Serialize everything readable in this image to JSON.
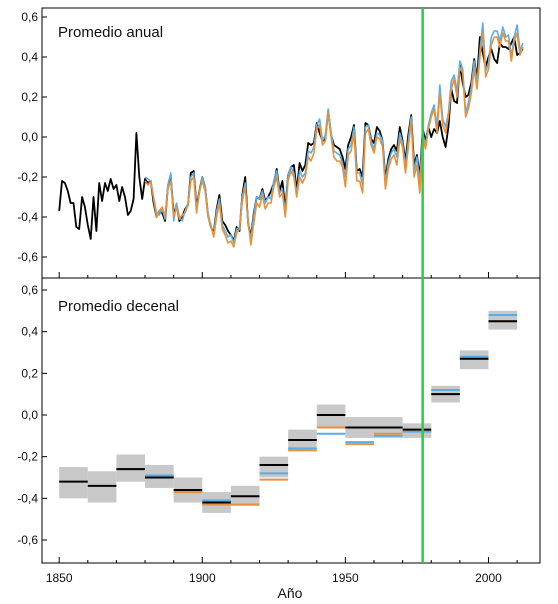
{
  "chart_data": [
    {
      "type": "line",
      "title": "Promedio anual",
      "xlabel": "",
      "ylabel": "",
      "xlim": [
        1844,
        2018
      ],
      "ylim": [
        -0.7,
        0.62
      ],
      "yticks": [
        0.6,
        0.4,
        0.2,
        0.0,
        -0.2,
        -0.4,
        -0.6
      ],
      "ytick_labels": [
        "0,6",
        "0,4",
        "0,2",
        "0,0",
        "-0,2",
        "-0,4",
        "-0,6"
      ],
      "grid": false,
      "legend": "none",
      "series": [
        {
          "color": "#000000",
          "x": [
            1850,
            1851,
            1852,
            1853,
            1854,
            1855,
            1856,
            1857,
            1858,
            1859,
            1860,
            1861,
            1862,
            1863,
            1864,
            1865,
            1866,
            1867,
            1868,
            1869,
            1870,
            1871,
            1872,
            1873,
            1874,
            1875,
            1876,
            1877,
            1878,
            1879,
            1880,
            1881,
            1882,
            1883,
            1884,
            1885,
            1886,
            1887,
            1888,
            1889,
            1890,
            1891,
            1892,
            1893,
            1894,
            1895,
            1896,
            1897,
            1898,
            1899,
            1900,
            1901,
            1902,
            1903,
            1904,
            1905,
            1906,
            1907,
            1908,
            1909,
            1910,
            1911,
            1912,
            1913,
            1914,
            1915,
            1916,
            1917,
            1918,
            1919,
            1920,
            1921,
            1922,
            1923,
            1924,
            1925,
            1926,
            1927,
            1928,
            1929,
            1930,
            1931,
            1932,
            1933,
            1934,
            1935,
            1936,
            1937,
            1938,
            1939,
            1940,
            1941,
            1942,
            1943,
            1944,
            1945,
            1946,
            1947,
            1948,
            1949,
            1950,
            1951,
            1952,
            1953,
            1954,
            1955,
            1956,
            1957,
            1958,
            1959,
            1960,
            1961,
            1962,
            1963,
            1964,
            1965,
            1966,
            1967,
            1968,
            1969,
            1970,
            1971,
            1972,
            1973,
            1974,
            1975,
            1976,
            1977,
            1978,
            1979,
            1980,
            1981,
            1982,
            1983,
            1984,
            1985,
            1986,
            1987,
            1988,
            1989,
            1990,
            1991,
            1992,
            1993,
            1994,
            1995,
            1996,
            1997,
            1998,
            1999,
            2000,
            2001,
            2002,
            2003,
            2004,
            2005,
            2006,
            2007,
            2008,
            2009,
            2010,
            2011,
            2012
          ],
          "y": [
            -0.37,
            -0.22,
            -0.23,
            -0.27,
            -0.33,
            -0.33,
            -0.45,
            -0.46,
            -0.3,
            -0.35,
            -0.44,
            -0.51,
            -0.3,
            -0.47,
            -0.23,
            -0.32,
            -0.23,
            -0.27,
            -0.21,
            -0.26,
            -0.24,
            -0.32,
            -0.25,
            -0.3,
            -0.39,
            -0.37,
            -0.31,
            0.02,
            -0.2,
            -0.31,
            -0.21,
            -0.23,
            -0.22,
            -0.33,
            -0.4,
            -0.37,
            -0.38,
            -0.42,
            -0.25,
            -0.2,
            -0.39,
            -0.34,
            -0.42,
            -0.4,
            -0.36,
            -0.34,
            -0.18,
            -0.17,
            -0.35,
            -0.27,
            -0.2,
            -0.25,
            -0.39,
            -0.45,
            -0.48,
            -0.36,
            -0.29,
            -0.42,
            -0.44,
            -0.47,
            -0.49,
            -0.52,
            -0.45,
            -0.47,
            -0.29,
            -0.2,
            -0.43,
            -0.5,
            -0.38,
            -0.3,
            -0.31,
            -0.26,
            -0.32,
            -0.3,
            -0.27,
            -0.23,
            -0.16,
            -0.27,
            -0.22,
            -0.36,
            -0.19,
            -0.15,
            -0.14,
            -0.27,
            -0.13,
            -0.17,
            -0.14,
            -0.03,
            -0.04,
            -0.03,
            0.07,
            0.02,
            -0.02,
            -0.01,
            0.13,
            0.01,
            -0.04,
            -0.05,
            -0.06,
            -0.1,
            -0.16,
            -0.04,
            0.0,
            0.06,
            -0.17,
            -0.16,
            -0.2,
            0.07,
            0.06,
            -0.01,
            -0.03,
            0.05,
            0.03,
            -0.02,
            -0.21,
            -0.11,
            -0.06,
            -0.04,
            -0.07,
            0.05,
            -0.02,
            -0.12,
            0.01,
            0.11,
            -0.14,
            -0.09,
            -0.2,
            0.04,
            -0.02,
            0.05,
            0.0,
            0.04,
            0.02,
            0.08,
            0.0,
            -0.05,
            0.05,
            0.24,
            0.18,
            0.17,
            0.36,
            0.27,
            0.2,
            0.21,
            0.27,
            0.39,
            0.29,
            0.5,
            0.42,
            0.35,
            0.4,
            0.44,
            0.39,
            0.37,
            0.47,
            0.45,
            0.45,
            0.44,
            0.47,
            0.5,
            0.41,
            0.42,
            0.44
          ]
        },
        {
          "color": "#5aaee8",
          "x": [
            1880,
            1881,
            1882,
            1883,
            1884,
            1885,
            1886,
            1887,
            1888,
            1889,
            1890,
            1891,
            1892,
            1893,
            1894,
            1895,
            1896,
            1897,
            1898,
            1899,
            1900,
            1901,
            1902,
            1903,
            1904,
            1905,
            1906,
            1907,
            1908,
            1909,
            1910,
            1911,
            1912,
            1913,
            1914,
            1915,
            1916,
            1917,
            1918,
            1919,
            1920,
            1921,
            1922,
            1923,
            1924,
            1925,
            1926,
            1927,
            1928,
            1929,
            1930,
            1931,
            1932,
            1933,
            1934,
            1935,
            1936,
            1937,
            1938,
            1939,
            1940,
            1941,
            1942,
            1943,
            1944,
            1945,
            1946,
            1947,
            1948,
            1949,
            1950,
            1951,
            1952,
            1953,
            1954,
            1955,
            1956,
            1957,
            1958,
            1959,
            1960,
            1961,
            1962,
            1963,
            1964,
            1965,
            1966,
            1967,
            1968,
            1969,
            1970,
            1971,
            1972,
            1973,
            1974,
            1975,
            1976,
            1977,
            1978,
            1979,
            1980,
            1981,
            1982,
            1983,
            1984,
            1985,
            1986,
            1987,
            1988,
            1989,
            1990,
            1991,
            1992,
            1993,
            1994,
            1995,
            1996,
            1997,
            1998,
            1999,
            2000,
            2001,
            2002,
            2003,
            2004,
            2005,
            2006,
            2007,
            2008,
            2009,
            2010,
            2011,
            2012
          ],
          "y": [
            -0.2,
            -0.21,
            -0.22,
            -0.3,
            -0.38,
            -0.39,
            -0.36,
            -0.41,
            -0.24,
            -0.18,
            -0.42,
            -0.33,
            -0.4,
            -0.42,
            -0.37,
            -0.33,
            -0.2,
            -0.18,
            -0.36,
            -0.28,
            -0.2,
            -0.25,
            -0.38,
            -0.45,
            -0.49,
            -0.37,
            -0.31,
            -0.44,
            -0.47,
            -0.5,
            -0.49,
            -0.53,
            -0.46,
            -0.45,
            -0.3,
            -0.23,
            -0.44,
            -0.51,
            -0.39,
            -0.3,
            -0.31,
            -0.27,
            -0.33,
            -0.3,
            -0.31,
            -0.22,
            -0.17,
            -0.28,
            -0.26,
            -0.38,
            -0.19,
            -0.15,
            -0.18,
            -0.29,
            -0.17,
            -0.2,
            -0.18,
            -0.07,
            -0.08,
            -0.05,
            0.06,
            0.09,
            -0.02,
            0.01,
            0.14,
            0.02,
            -0.07,
            -0.08,
            -0.09,
            -0.13,
            -0.2,
            -0.06,
            -0.04,
            0.05,
            -0.18,
            -0.18,
            -0.24,
            0.05,
            0.06,
            -0.02,
            -0.06,
            0.02,
            0.01,
            -0.02,
            -0.23,
            -0.13,
            -0.08,
            -0.06,
            -0.1,
            0.02,
            -0.03,
            -0.15,
            -0.02,
            0.1,
            -0.17,
            -0.1,
            -0.23,
            0.02,
            -0.04,
            0.06,
            0.12,
            0.16,
            0.05,
            0.26,
            0.09,
            0.05,
            0.12,
            0.28,
            0.31,
            0.23,
            0.38,
            0.34,
            0.12,
            0.17,
            0.25,
            0.38,
            0.27,
            0.43,
            0.57,
            0.33,
            0.37,
            0.5,
            0.53,
            0.53,
            0.48,
            0.55,
            0.5,
            0.51,
            0.4,
            0.5,
            0.56,
            0.43,
            0.47
          ]
        },
        {
          "color": "#e8913c",
          "x": [
            1880,
            1881,
            1882,
            1883,
            1884,
            1885,
            1886,
            1887,
            1888,
            1889,
            1890,
            1891,
            1892,
            1893,
            1894,
            1895,
            1896,
            1897,
            1898,
            1899,
            1900,
            1901,
            1902,
            1903,
            1904,
            1905,
            1906,
            1907,
            1908,
            1909,
            1910,
            1911,
            1912,
            1913,
            1914,
            1915,
            1916,
            1917,
            1918,
            1919,
            1920,
            1921,
            1922,
            1923,
            1924,
            1925,
            1926,
            1927,
            1928,
            1929,
            1930,
            1931,
            1932,
            1933,
            1934,
            1935,
            1936,
            1937,
            1938,
            1939,
            1940,
            1941,
            1942,
            1943,
            1944,
            1945,
            1946,
            1947,
            1948,
            1949,
            1950,
            1951,
            1952,
            1953,
            1954,
            1955,
            1956,
            1957,
            1958,
            1959,
            1960,
            1961,
            1962,
            1963,
            1964,
            1965,
            1966,
            1967,
            1968,
            1969,
            1970,
            1971,
            1972,
            1973,
            1974,
            1975,
            1976,
            1977,
            1978,
            1979,
            1980,
            1981,
            1982,
            1983,
            1984,
            1985,
            1986,
            1987,
            1988,
            1989,
            1990,
            1991,
            1992,
            1993,
            1994,
            1995,
            1996,
            1997,
            1998,
            1999,
            2000,
            2001,
            2002,
            2003,
            2004,
            2005,
            2006,
            2007,
            2008,
            2009,
            2010,
            2011,
            2012
          ],
          "y": [
            -0.22,
            -0.24,
            -0.22,
            -0.31,
            -0.4,
            -0.37,
            -0.35,
            -0.4,
            -0.26,
            -0.22,
            -0.4,
            -0.35,
            -0.41,
            -0.39,
            -0.38,
            -0.34,
            -0.22,
            -0.2,
            -0.38,
            -0.27,
            -0.22,
            -0.27,
            -0.4,
            -0.44,
            -0.5,
            -0.4,
            -0.33,
            -0.46,
            -0.49,
            -0.53,
            -0.52,
            -0.55,
            -0.48,
            -0.46,
            -0.32,
            -0.25,
            -0.42,
            -0.54,
            -0.43,
            -0.33,
            -0.35,
            -0.29,
            -0.36,
            -0.33,
            -0.33,
            -0.25,
            -0.2,
            -0.3,
            -0.28,
            -0.4,
            -0.22,
            -0.17,
            -0.2,
            -0.3,
            -0.2,
            -0.23,
            -0.2,
            -0.1,
            -0.12,
            -0.08,
            0.04,
            0.06,
            -0.04,
            -0.02,
            0.12,
            0.0,
            -0.1,
            -0.12,
            -0.12,
            -0.15,
            -0.25,
            -0.09,
            -0.07,
            0.02,
            -0.22,
            -0.22,
            -0.28,
            0.02,
            0.04,
            -0.04,
            -0.08,
            0.0,
            -0.01,
            -0.05,
            -0.26,
            -0.16,
            -0.11,
            -0.09,
            -0.14,
            -0.01,
            -0.05,
            -0.18,
            -0.05,
            0.08,
            -0.2,
            -0.14,
            -0.28,
            0.0,
            -0.06,
            0.04,
            0.1,
            0.14,
            0.02,
            0.22,
            0.06,
            0.02,
            0.1,
            0.24,
            0.29,
            0.2,
            0.35,
            0.32,
            0.1,
            0.14,
            0.22,
            0.34,
            0.24,
            0.4,
            0.52,
            0.3,
            0.34,
            0.46,
            0.5,
            0.5,
            0.45,
            0.52,
            0.48,
            0.48,
            0.38,
            0.48,
            0.52,
            0.41,
            0.45
          ]
        }
      ]
    },
    {
      "type": "bar",
      "title": "Promedio decenal",
      "xlabel": "Año",
      "ylabel": "",
      "xlim": [
        1844,
        2018
      ],
      "ylim": [
        -0.7,
        0.62
      ],
      "xticks": [
        1850,
        1900,
        1950,
        2000
      ],
      "xtick_labels": [
        "1850",
        "1900",
        "1950",
        "2000"
      ],
      "yticks": [
        0.6,
        0.4,
        0.2,
        0.0,
        -0.2,
        -0.4,
        -0.6
      ],
      "ytick_labels": [
        "0,6",
        "0,4",
        "0,2",
        "0,0",
        "-0,2",
        "-0,4",
        "-0,6"
      ],
      "grid": false,
      "legend": "none",
      "decades": [
        1850,
        1860,
        1870,
        1880,
        1890,
        1900,
        1910,
        1920,
        1930,
        1940,
        1950,
        1960,
        1970,
        1980,
        1990,
        2000
      ],
      "series": [
        {
          "color": "#000000",
          "values": [
            -0.32,
            -0.34,
            -0.26,
            -0.3,
            -0.36,
            -0.42,
            -0.39,
            -0.24,
            -0.12,
            0.0,
            -0.06,
            -0.06,
            -0.07,
            0.1,
            0.27,
            0.45
          ],
          "low": [
            -0.4,
            -0.42,
            -0.32,
            -0.35,
            -0.42,
            -0.47,
            -0.43,
            -0.3,
            -0.17,
            -0.06,
            -0.11,
            -0.11,
            -0.11,
            0.06,
            0.22,
            0.41
          ],
          "high": [
            -0.25,
            -0.27,
            -0.19,
            -0.24,
            -0.3,
            -0.37,
            -0.34,
            -0.2,
            -0.07,
            0.05,
            -0.01,
            -0.01,
            -0.04,
            0.14,
            0.31,
            0.5
          ]
        },
        {
          "color": "#5aaee8",
          "decades": [
            1880,
            1890,
            1900,
            1910,
            1920,
            1930,
            1940,
            1950,
            1960,
            1970,
            1980,
            1990,
            2000
          ],
          "values": [
            -0.29,
            -0.37,
            -0.41,
            -0.43,
            -0.28,
            -0.16,
            -0.09,
            -0.13,
            -0.1,
            -0.08,
            0.12,
            0.28,
            0.48
          ]
        },
        {
          "color": "#e8913c",
          "decades": [
            1880,
            1890,
            1900,
            1910,
            1920,
            1930,
            1940,
            1950,
            1960,
            1970,
            1980,
            1990,
            2000
          ],
          "values": [
            -0.3,
            -0.37,
            -0.43,
            -0.43,
            -0.31,
            -0.17,
            -0.06,
            -0.14,
            -0.09,
            -0.07,
            0.1,
            0.27,
            0.45
          ]
        }
      ]
    }
  ],
  "marker": {
    "year": 1977,
    "color": "#2ecc40"
  }
}
